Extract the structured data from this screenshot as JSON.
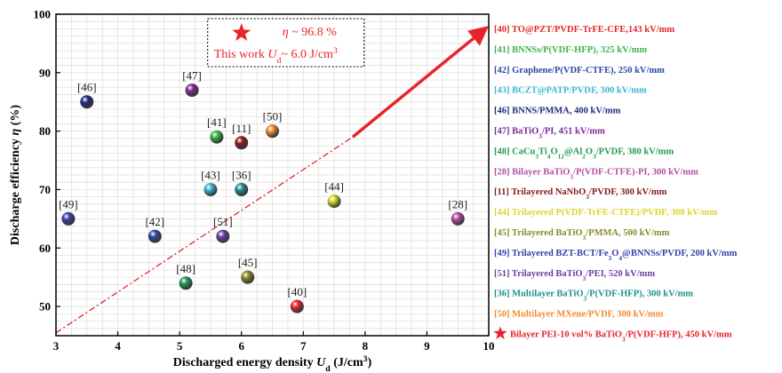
{
  "chart_data": {
    "type": "scatter",
    "xlabel": "Discharged energy density U",
    "xlabel_sub": "d",
    "xlabel_unit": " (J/cm",
    "xlabel_unit_sup": "3",
    "xlabel_close": ")",
    "ylabel": "Discharge efficiency η (%)",
    "xlim": [
      3,
      10
    ],
    "ylim": [
      45,
      100
    ],
    "xticks": [
      3,
      4,
      5,
      6,
      7,
      8,
      9,
      10
    ],
    "yticks": [
      50,
      60,
      70,
      80,
      90,
      100
    ],
    "grid": true,
    "legend_position": "right",
    "points": [
      {
        "ref": "[40]",
        "x": 6.9,
        "y": 50,
        "color": "#e8242a",
        "label_pos": "top",
        "legend": "[40] TO@PZT/PVDF-TrFE-CFE,143 kV/mm"
      },
      {
        "ref": "[41]",
        "x": 5.6,
        "y": 79,
        "color": "#3cb44b",
        "label_pos": "top",
        "legend": "[41] BNNSs/P(VDF-HFP), 325 kV/mm"
      },
      {
        "ref": "[42]",
        "x": 4.6,
        "y": 62,
        "color": "#2b48a6",
        "label_pos": "top",
        "legend": "[42] Graphene/P(VDF-CTFE), 250 kV/mm"
      },
      {
        "ref": "[43]",
        "x": 5.5,
        "y": 70,
        "color": "#3ab3d6",
        "label_pos": "top",
        "legend": "[43] BCZT@PATP/PVDF, 300 kV/mm"
      },
      {
        "ref": "[46]",
        "x": 3.5,
        "y": 85,
        "color": "#1f2a7a",
        "label_pos": "top",
        "legend": "[46] BNNS/PMMA, 400 kV/mm"
      },
      {
        "ref": "[47]",
        "x": 5.2,
        "y": 87,
        "color": "#7b2a8f",
        "label_pos": "top",
        "legend": "[47] BaTiO3/PI, 451 kV/mm"
      },
      {
        "ref": "[48]",
        "x": 5.1,
        "y": 54,
        "color": "#1e9a55",
        "label_pos": "top",
        "legend": "[48] CaCu3Ti4O12@Al2O3/PVDF, 380 kV/mm"
      },
      {
        "ref": "[28]",
        "x": 9.5,
        "y": 65,
        "color": "#b04fa6",
        "label_pos": "top",
        "legend": "[28] Bilayer BaTiO3/P(VDF-CTFE)-PI, 300 kV/mm"
      },
      {
        "ref": "[11]",
        "x": 6.0,
        "y": 78,
        "color": "#8b1a1a",
        "label_pos": "top",
        "legend": "[11] Trilayered NaNbO3/PVDF, 300 kV/mm"
      },
      {
        "ref": "[44]",
        "x": 7.5,
        "y": 68,
        "color": "#d9d62a",
        "label_pos": "top",
        "legend": "[44] Trilayered P(VDF-TrFE-CTFE)/PVDF, 300 kV/mm"
      },
      {
        "ref": "[45]",
        "x": 6.1,
        "y": 55,
        "color": "#8a8a2a",
        "label_pos": "top",
        "legend": "[45] Trilayered BaTiO3/PMMA, 500 kV/mm"
      },
      {
        "ref": "[49]",
        "x": 3.2,
        "y": 65,
        "color": "#3a3fa8",
        "label_pos": "top",
        "legend": "[49] Trilayered BZT-BCT/Fe3O4@BNNSs/PVDF, 200 kV/mm"
      },
      {
        "ref": "[51]",
        "x": 5.7,
        "y": 62,
        "color": "#6b3fa0",
        "label_pos": "top",
        "legend": "[51] Trilayered BaTiO3/PEI, 520 kV/mm"
      },
      {
        "ref": "[36]",
        "x": 6.0,
        "y": 70,
        "color": "#1f8f8f",
        "label_pos": "top",
        "legend": "[36] Multilayer BaTiO3/P(VDF-HFP), 300 kV/mm"
      },
      {
        "ref": "[50]",
        "x": 6.5,
        "y": 80,
        "color": "#f28a2e",
        "label_pos": "top",
        "legend": "[50] Multilayer MXene/PVDF, 300 kV/mm"
      }
    ],
    "this_work": {
      "x": 6.0,
      "y": 96.8,
      "color": "#e8242a",
      "legend": "Bilayer PEI-10 vol% BaTiO3/P(VDF-HFP), 450 kV/mm",
      "annotation_line1": "η ~ 96.8 %",
      "annotation_line2_a": "This work",
      "annotation_line2_b": "U",
      "annotation_line2_sub": "d",
      "annotation_line2_c": "~ 6.0 J/cm",
      "annotation_line2_sup": "3"
    },
    "trend_line": {
      "from": [
        3,
        45.5
      ],
      "to": [
        7.8,
        79
      ],
      "arrow_to": [
        10,
        98
      ],
      "color": "#e8242a"
    },
    "legend_entries": [
      {
        "text": "[40] TO@PZT/PVDF-TrFE-CFE,143 kV/mm",
        "color": "#e8242a",
        "parts": [
          [
            "[40] TO@PZT/PVDF-TrFE-CFE,143 kV/mm",
            ""
          ]
        ]
      },
      {
        "text": "[41] BNNSs/P(VDF-HFP), 325 kV/mm",
        "color": "#3cb44b",
        "parts": [
          [
            "[41] BNNSs/P(VDF-HFP), 325 kV/mm",
            ""
          ]
        ]
      },
      {
        "text": "[42] Graphene/P(VDF-CTFE), 250 kV/mm",
        "color": "#2b48a6",
        "parts": [
          [
            "[42] Graphene/P(VDF-CTFE), 250 kV/mm",
            ""
          ]
        ]
      },
      {
        "text": "[43] BCZT@PATP/PVDF, 300 kV/mm",
        "color": "#3ab3d6",
        "parts": [
          [
            "[43] BCZT@PATP/PVDF, 300 kV/mm",
            ""
          ]
        ]
      },
      {
        "text": "[46] BNNS/PMMA, 400 kV/mm",
        "color": "#1f2a7a",
        "parts": [
          [
            "[46] BNNS/PMMA, 400 kV/mm",
            ""
          ]
        ]
      },
      {
        "text": "[47] BaTiO3/PI, 451 kV/mm",
        "color": "#7b2a8f",
        "parts": [
          [
            "[47] BaTiO",
            ""
          ],
          [
            "3",
            "sub"
          ],
          [
            "/PI, 451 kV/mm",
            ""
          ]
        ]
      },
      {
        "text": "[48] CaCu3Ti4O12@Al2O3/PVDF, 380 kV/mm",
        "color": "#1e9a55",
        "parts": [
          [
            "[48] CaCu",
            ""
          ],
          [
            "3",
            "sub"
          ],
          [
            "Ti",
            ""
          ],
          [
            "4",
            "sub"
          ],
          [
            "O",
            ""
          ],
          [
            "12",
            "sub"
          ],
          [
            "@Al",
            ""
          ],
          [
            "2",
            "sub"
          ],
          [
            "O",
            ""
          ],
          [
            "3",
            "sub"
          ],
          [
            "/PVDF, 380 kV/mm",
            ""
          ]
        ]
      },
      {
        "text": "[28] Bilayer BaTiO3/P(VDF-CTFE)-PI, 300 kV/mm",
        "color": "#b04fa6",
        "parts": [
          [
            "[28] Bilayer BaTiO",
            ""
          ],
          [
            "3",
            "sub"
          ],
          [
            "/P(VDF-CTFE)-PI, 300 kV/mm",
            ""
          ]
        ]
      },
      {
        "text": "[11] Trilayered NaNbO3/PVDF, 300 kV/mm",
        "color": "#8b1a1a",
        "parts": [
          [
            "[11] Trilayered NaNbO",
            ""
          ],
          [
            "3",
            "sub"
          ],
          [
            "/PVDF, 300 kV/mm",
            ""
          ]
        ]
      },
      {
        "text": "[44] Trilayered P(VDF-TrFE-CTFE)/PVDF, 300 kV/mm",
        "color": "#d9d62a",
        "parts": [
          [
            "[44] Trilayered P(VDF-TrFE-CTFE)/PVDF, 300 kV/mm",
            ""
          ]
        ]
      },
      {
        "text": "[45] Trilayered BaTiO3/PMMA, 500 kV/mm",
        "color": "#8a8a2a",
        "parts": [
          [
            "[45] Trilayered BaTiO",
            ""
          ],
          [
            "3",
            "sub"
          ],
          [
            "/PMMA, 500 kV/mm",
            ""
          ]
        ]
      },
      {
        "text": "[49] Trilayered BZT-BCT/Fe3O4@BNNSs/PVDF, 200 kV/mm",
        "color": "#3a3fa8",
        "parts": [
          [
            "[49] Trilayered BZT-BCT/Fe",
            ""
          ],
          [
            "3",
            "sub"
          ],
          [
            "O",
            ""
          ],
          [
            "4",
            "sub"
          ],
          [
            "@BNNSs/PVDF, 200 kV/mm",
            ""
          ]
        ]
      },
      {
        "text": "[51] Trilayered BaTiO3/PEI, 520 kV/mm",
        "color": "#6b3fa0",
        "parts": [
          [
            "[51] Trilayered BaTiO",
            ""
          ],
          [
            "3",
            "sub"
          ],
          [
            "/PEI, 520 kV/mm",
            ""
          ]
        ]
      },
      {
        "text": "[36] Multilayer BaTiO3/P(VDF-HFP), 300 kV/mm",
        "color": "#1f8f8f",
        "parts": [
          [
            "[36] Multilayer BaTiO",
            ""
          ],
          [
            "3",
            "sub"
          ],
          [
            "/P(VDF-HFP), 300 kV/mm",
            ""
          ]
        ]
      },
      {
        "text": "[50] Multilayer MXene/PVDF, 300 kV/mm",
        "color": "#f28a2e",
        "parts": [
          [
            "[50] Multilayer MXene/PVDF, 300 kV/mm",
            ""
          ]
        ]
      },
      {
        "text": "Bilayer PEI-10 vol% BaTiO3/P(VDF-HFP), 450 kV/mm",
        "color": "#e8242a",
        "star": true,
        "parts": [
          [
            "Bilayer PEI-10 vol% BaTiO",
            ""
          ],
          [
            "3",
            "sub"
          ],
          [
            "/P(VDF-HFP), 450 kV/mm",
            ""
          ]
        ]
      }
    ]
  }
}
